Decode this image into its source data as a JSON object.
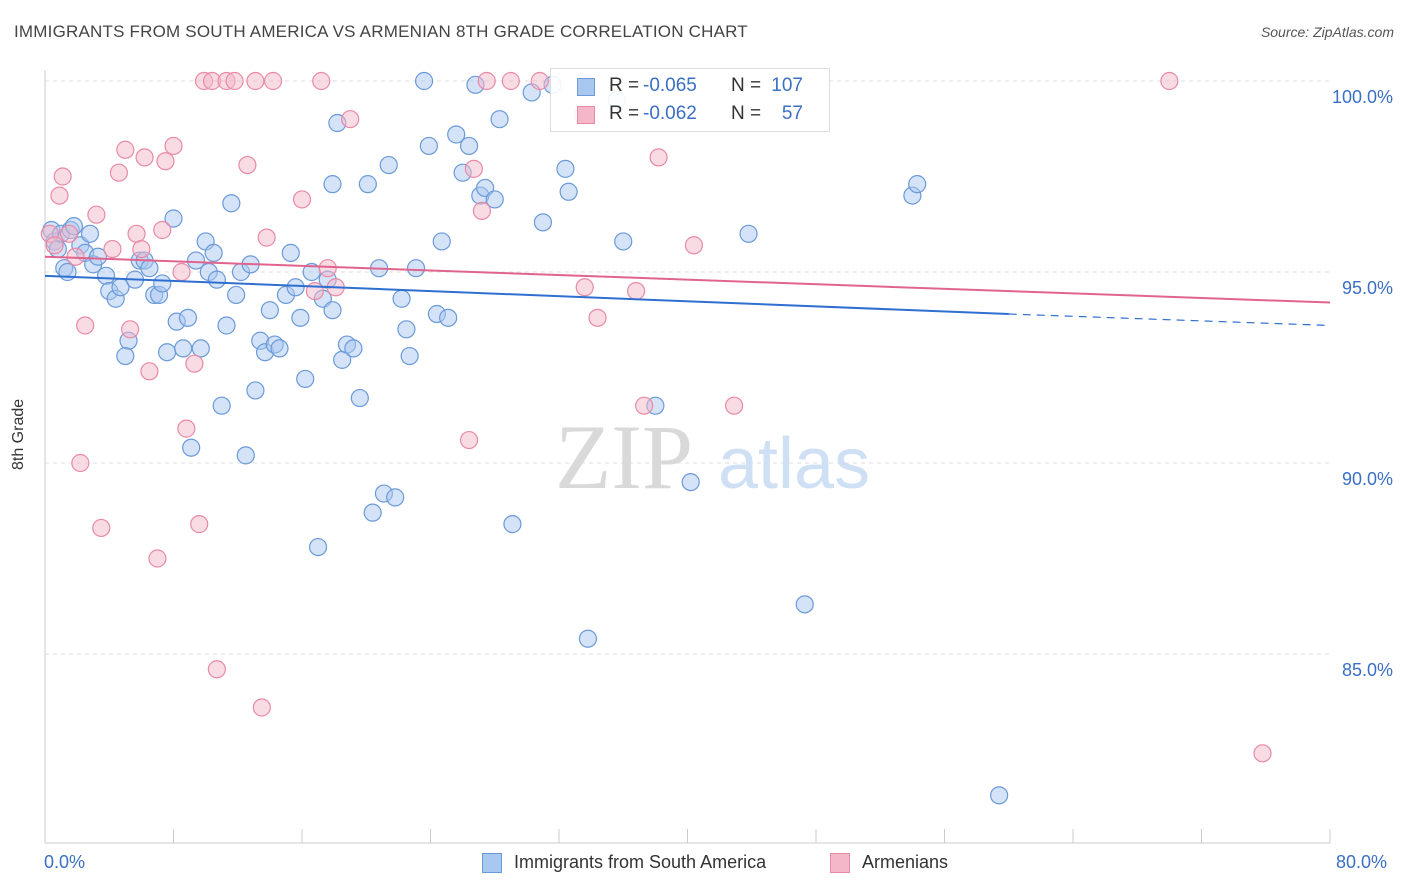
{
  "title": "IMMIGRANTS FROM SOUTH AMERICA VS ARMENIAN 8TH GRADE CORRELATION CHART",
  "source": "Source: ZipAtlas.com",
  "watermark": {
    "zip": "ZIP",
    "atlas": "atlas"
  },
  "colors": {
    "blue_fill": "#a9c8f0",
    "blue_stroke": "#6b9ad9",
    "blue_line": "#2f6fd0",
    "pink_fill": "#f4b7c9",
    "pink_stroke": "#e88aa6",
    "pink_line": "#e0648e",
    "tick_text": "#3a6fc4",
    "grid": "#dddddd"
  },
  "legend_top": {
    "blue": {
      "r_label": "R =",
      "r_value": "-0.065",
      "n_label": "N =",
      "n_value": "107"
    },
    "pink": {
      "r_label": "R =",
      "r_value": "-0.062",
      "n_label": "N =",
      "n_value": "57"
    }
  },
  "chart_data": {
    "type": "scatter",
    "title": "IMMIGRANTS FROM SOUTH AMERICA VS ARMENIAN 8TH GRADE CORRELATION CHART",
    "xlabel": "",
    "ylabel": "8th Grade",
    "xlim": [
      0,
      80
    ],
    "ylim": [
      80,
      101
    ],
    "x_tick_labels": [
      "0.0%",
      "80.0%"
    ],
    "y_ticks": [
      85,
      90,
      95,
      100
    ],
    "y_tick_labels": [
      "85.0%",
      "90.0%",
      "95.0%",
      "100.0%"
    ],
    "grid": true,
    "series": [
      {
        "name": "Immigrants from South America",
        "color": "#a9c8f0",
        "trend": {
          "x0": 0,
          "y0": 94.9,
          "x1": 60,
          "y1": 93.9,
          "dash_to": 80,
          "dash_y": 93.6
        },
        "points": [
          [
            0.4,
            96.1
          ],
          [
            0.6,
            95.8
          ],
          [
            0.8,
            95.6
          ],
          [
            1.0,
            96.0
          ],
          [
            1.2,
            95.1
          ],
          [
            1.4,
            95.0
          ],
          [
            1.6,
            96.1
          ],
          [
            1.8,
            96.2
          ],
          [
            2.2,
            95.7
          ],
          [
            2.5,
            95.5
          ],
          [
            2.8,
            96.0
          ],
          [
            3.0,
            95.2
          ],
          [
            3.3,
            95.4
          ],
          [
            3.8,
            94.9
          ],
          [
            4.0,
            94.5
          ],
          [
            4.4,
            94.3
          ],
          [
            4.7,
            94.6
          ],
          [
            5.2,
            93.2
          ],
          [
            5.0,
            92.8
          ],
          [
            5.6,
            94.8
          ],
          [
            5.9,
            95.3
          ],
          [
            6.2,
            95.3
          ],
          [
            6.5,
            95.1
          ],
          [
            6.8,
            94.4
          ],
          [
            7.1,
            94.4
          ],
          [
            7.3,
            94.7
          ],
          [
            7.6,
            92.9
          ],
          [
            8.0,
            96.4
          ],
          [
            8.2,
            93.7
          ],
          [
            8.6,
            93.0
          ],
          [
            8.9,
            93.8
          ],
          [
            9.1,
            90.4
          ],
          [
            9.4,
            95.3
          ],
          [
            9.7,
            93.0
          ],
          [
            10.0,
            95.8
          ],
          [
            10.2,
            95.0
          ],
          [
            10.5,
            95.5
          ],
          [
            10.7,
            94.8
          ],
          [
            11.0,
            91.5
          ],
          [
            11.3,
            93.6
          ],
          [
            11.6,
            96.8
          ],
          [
            11.9,
            94.4
          ],
          [
            12.2,
            95.0
          ],
          [
            12.5,
            90.2
          ],
          [
            12.8,
            95.2
          ],
          [
            13.1,
            91.9
          ],
          [
            13.4,
            93.2
          ],
          [
            13.7,
            92.9
          ],
          [
            14.0,
            94.0
          ],
          [
            14.3,
            93.1
          ],
          [
            14.6,
            93.0
          ],
          [
            15.0,
            94.4
          ],
          [
            15.3,
            95.5
          ],
          [
            15.6,
            94.6
          ],
          [
            15.9,
            93.8
          ],
          [
            16.2,
            92.2
          ],
          [
            16.6,
            95.0
          ],
          [
            17.0,
            87.8
          ],
          [
            17.3,
            94.3
          ],
          [
            17.6,
            94.8
          ],
          [
            17.9,
            94.0
          ],
          [
            18.2,
            98.9
          ],
          [
            18.5,
            92.7
          ],
          [
            18.8,
            93.1
          ],
          [
            19.2,
            93.0
          ],
          [
            19.6,
            91.7
          ],
          [
            17.9,
            97.3
          ],
          [
            20.1,
            97.3
          ],
          [
            20.4,
            88.7
          ],
          [
            20.8,
            95.1
          ],
          [
            21.1,
            89.2
          ],
          [
            21.4,
            97.8
          ],
          [
            21.8,
            89.1
          ],
          [
            22.2,
            94.3
          ],
          [
            22.5,
            93.5
          ],
          [
            22.7,
            92.8
          ],
          [
            23.1,
            95.1
          ],
          [
            23.6,
            100.0
          ],
          [
            23.9,
            98.3
          ],
          [
            24.4,
            93.9
          ],
          [
            24.7,
            95.8
          ],
          [
            25.1,
            93.8
          ],
          [
            25.6,
            98.6
          ],
          [
            26.0,
            97.6
          ],
          [
            26.4,
            98.3
          ],
          [
            26.8,
            99.9
          ],
          [
            27.1,
            97.0
          ],
          [
            27.4,
            97.2
          ],
          [
            28.3,
            99.0
          ],
          [
            29.1,
            88.4
          ],
          [
            30.3,
            99.7
          ],
          [
            31.6,
            99.9
          ],
          [
            32.4,
            97.7
          ],
          [
            32.6,
            97.1
          ],
          [
            33.5,
            99.1
          ],
          [
            33.8,
            85.4
          ],
          [
            35.6,
            99.5
          ],
          [
            38.0,
            91.5
          ],
          [
            40.2,
            89.5
          ],
          [
            43.8,
            96.0
          ],
          [
            47.3,
            86.3
          ],
          [
            54.0,
            97.0
          ],
          [
            54.3,
            97.3
          ],
          [
            59.4,
            81.3
          ],
          [
            28.0,
            96.9
          ],
          [
            31.0,
            96.3
          ],
          [
            36.0,
            95.8
          ]
        ]
      },
      {
        "name": "Armenians",
        "color": "#f4b7c9",
        "trend": {
          "x0": 0,
          "y0": 95.4,
          "x1": 80,
          "y1": 94.2
        },
        "points": [
          [
            0.3,
            96.0
          ],
          [
            0.6,
            95.7
          ],
          [
            0.9,
            97.0
          ],
          [
            1.1,
            97.5
          ],
          [
            1.5,
            96.0
          ],
          [
            1.9,
            95.4
          ],
          [
            2.2,
            90.0
          ],
          [
            2.5,
            93.6
          ],
          [
            3.2,
            96.5
          ],
          [
            3.5,
            88.3
          ],
          [
            4.2,
            95.6
          ],
          [
            4.6,
            97.6
          ],
          [
            5.0,
            98.2
          ],
          [
            5.3,
            93.5
          ],
          [
            5.7,
            96.0
          ],
          [
            6.0,
            95.6
          ],
          [
            6.2,
            98.0
          ],
          [
            6.5,
            92.4
          ],
          [
            7.0,
            87.5
          ],
          [
            7.3,
            96.1
          ],
          [
            7.5,
            97.9
          ],
          [
            8.0,
            98.3
          ],
          [
            8.5,
            95.0
          ],
          [
            8.8,
            90.9
          ],
          [
            9.3,
            92.6
          ],
          [
            9.6,
            88.4
          ],
          [
            9.9,
            100.0
          ],
          [
            10.4,
            100.0
          ],
          [
            10.7,
            84.6
          ],
          [
            11.3,
            100.0
          ],
          [
            11.8,
            100.0
          ],
          [
            12.6,
            97.8
          ],
          [
            13.1,
            100.0
          ],
          [
            13.5,
            83.6
          ],
          [
            13.8,
            95.9
          ],
          [
            14.2,
            100.0
          ],
          [
            16.0,
            96.9
          ],
          [
            16.8,
            94.5
          ],
          [
            17.2,
            100.0
          ],
          [
            17.6,
            95.1
          ],
          [
            18.1,
            94.6
          ],
          [
            19.0,
            99.0
          ],
          [
            26.7,
            97.7
          ],
          [
            26.4,
            90.6
          ],
          [
            27.2,
            96.6
          ],
          [
            27.5,
            100.0
          ],
          [
            29.0,
            100.0
          ],
          [
            30.8,
            100.0
          ],
          [
            33.6,
            94.6
          ],
          [
            34.4,
            93.8
          ],
          [
            36.8,
            94.5
          ],
          [
            37.3,
            91.5
          ],
          [
            38.2,
            98.0
          ],
          [
            40.4,
            95.7
          ],
          [
            42.9,
            91.5
          ],
          [
            70.0,
            100.0
          ],
          [
            75.8,
            82.4
          ]
        ]
      }
    ]
  },
  "legend_bottom": {
    "blue_label": "Immigrants from South America",
    "pink_label": "Armenians"
  }
}
